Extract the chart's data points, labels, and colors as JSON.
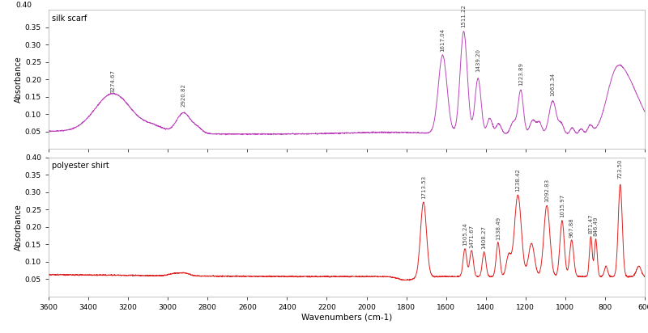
{
  "title_top": "silk scarf",
  "title_bottom": "polyester shirt",
  "xlabel": "Wavenumbers (cm-1)",
  "ylabel": "Absorbance",
  "silk_color": "#bb44bb",
  "polyester_color": "#dd2222",
  "background_color": "#ffffff",
  "xmin": 600,
  "xmax": 3600,
  "silk_ylim": [
    0.0,
    0.4
  ],
  "poly_ylim": [
    0.0,
    0.4
  ],
  "silk_yticks": [
    0.05,
    0.1,
    0.15,
    0.2,
    0.25,
    0.3,
    0.35
  ],
  "poly_yticks": [
    0.05,
    0.1,
    0.15,
    0.2,
    0.25,
    0.3,
    0.35,
    0.4
  ],
  "xticks": [
    600,
    800,
    1000,
    1200,
    1400,
    1600,
    1800,
    2000,
    2200,
    2400,
    2600,
    2800,
    3000,
    3200,
    3400,
    3600
  ],
  "silk_annotations": [
    {
      "wn": 3274.67,
      "label": "3274.67"
    },
    {
      "wn": 2920.82,
      "label": "2920.82"
    },
    {
      "wn": 1617.04,
      "label": "1617.04"
    },
    {
      "wn": 1511.22,
      "label": "1511.22"
    },
    {
      "wn": 1439.2,
      "label": "1439.20"
    },
    {
      "wn": 1223.89,
      "label": "1223.89"
    },
    {
      "wn": 1063.34,
      "label": "1063.34"
    }
  ],
  "poly_annotations": [
    {
      "wn": 1713.53,
      "label": "1713.53"
    },
    {
      "wn": 1505.24,
      "label": "1505.24"
    },
    {
      "wn": 1471.67,
      "label": "1471.67"
    },
    {
      "wn": 1408.27,
      "label": "1408.27"
    },
    {
      "wn": 1338.49,
      "label": "1338.49"
    },
    {
      "wn": 1238.42,
      "label": "1238.42"
    },
    {
      "wn": 1092.83,
      "label": "1092.83"
    },
    {
      "wn": 1015.97,
      "label": "1015.97"
    },
    {
      "wn": 967.88,
      "label": "967.88"
    },
    {
      "wn": 871.47,
      "label": "871.47"
    },
    {
      "wn": 846.49,
      "label": "846.49"
    },
    {
      "wn": 723.5,
      "label": "723.50"
    }
  ]
}
